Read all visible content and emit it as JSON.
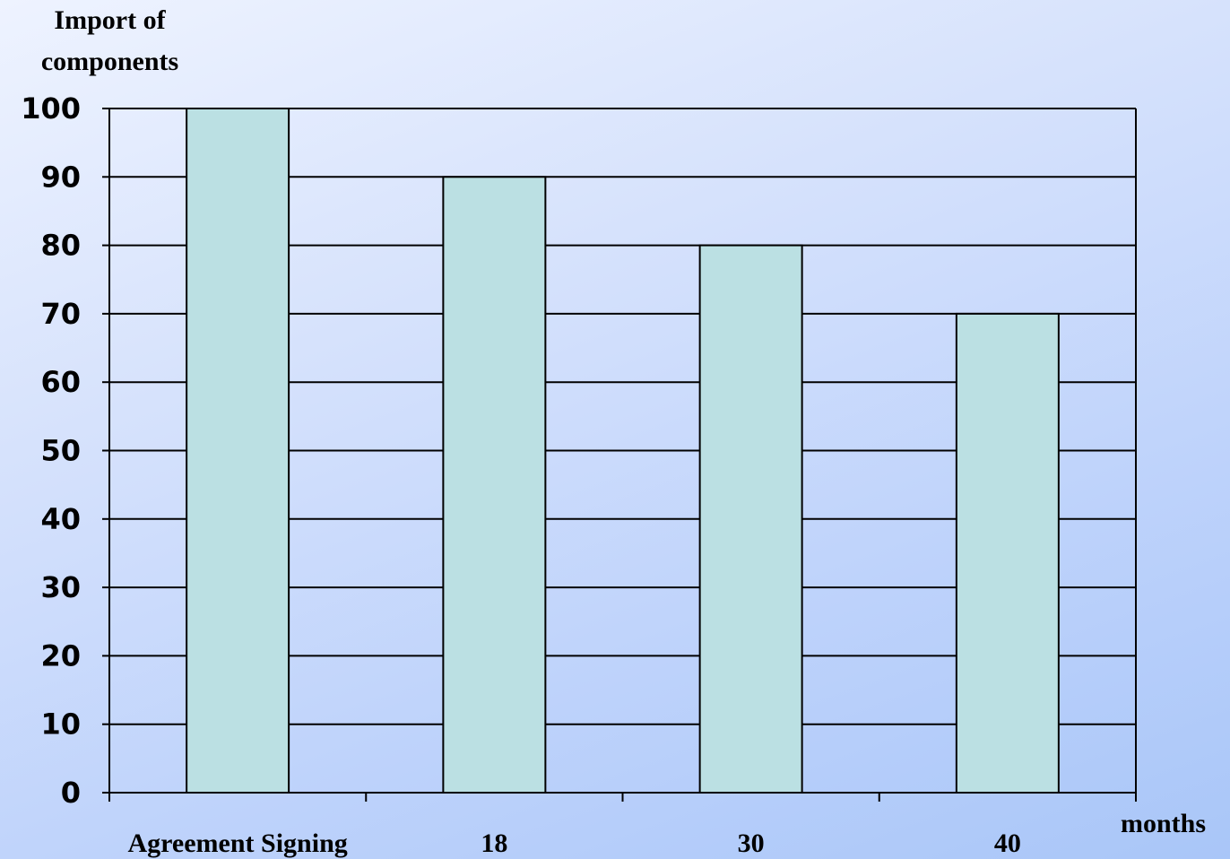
{
  "chart_data": {
    "type": "bar",
    "ylabel": [
      "Import of",
      "components"
    ],
    "xlabel": "months",
    "categories": [
      "Agreement Signing",
      "18",
      "30",
      "40"
    ],
    "values": [
      100,
      90,
      80,
      70
    ],
    "ylim": [
      0,
      100
    ],
    "yticks": [
      "0",
      "10",
      "20",
      "30",
      "40",
      "50",
      "60",
      "70",
      "80",
      "90",
      "100"
    ],
    "grid": true,
    "legend": "none",
    "colors": {
      "bar_fill": "#bbe0e3",
      "bar_stroke": "#000000",
      "grid": "#000000"
    }
  }
}
